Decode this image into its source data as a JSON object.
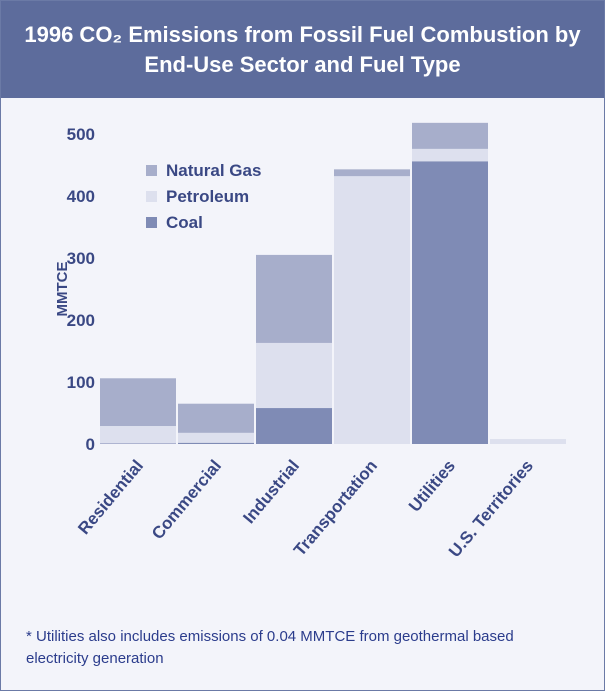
{
  "chart_data": {
    "type": "stacked_bar",
    "title": "1996 CO₂ Emissions from Fossil Fuel Combustion by End-Use Sector and Fuel Type",
    "ylabel": "MMTCE",
    "categories": [
      "Residential",
      "Commercial",
      "Industrial",
      "Transportation",
      "Utilities",
      "U.S. Territories"
    ],
    "series": [
      {
        "name": "Natural Gas",
        "color": "#a7aecb",
        "values": [
          77,
          47,
          142,
          11,
          42,
          0
        ]
      },
      {
        "name": "Petroleum",
        "color": "#dde0ee",
        "values": [
          28,
          16,
          105,
          432,
          20,
          8
        ]
      },
      {
        "name": "Coal",
        "color": "#7f8bb5",
        "values": [
          1,
          2,
          58,
          0,
          456,
          0
        ]
      }
    ],
    "ylim": [
      0,
      500
    ],
    "yticks": [
      0,
      100,
      200,
      300,
      400,
      500
    ],
    "legend": "upper left",
    "footnote": "* Utilities also includes emissions of 0.04 MMTCE from geothermal based electricity generation"
  }
}
